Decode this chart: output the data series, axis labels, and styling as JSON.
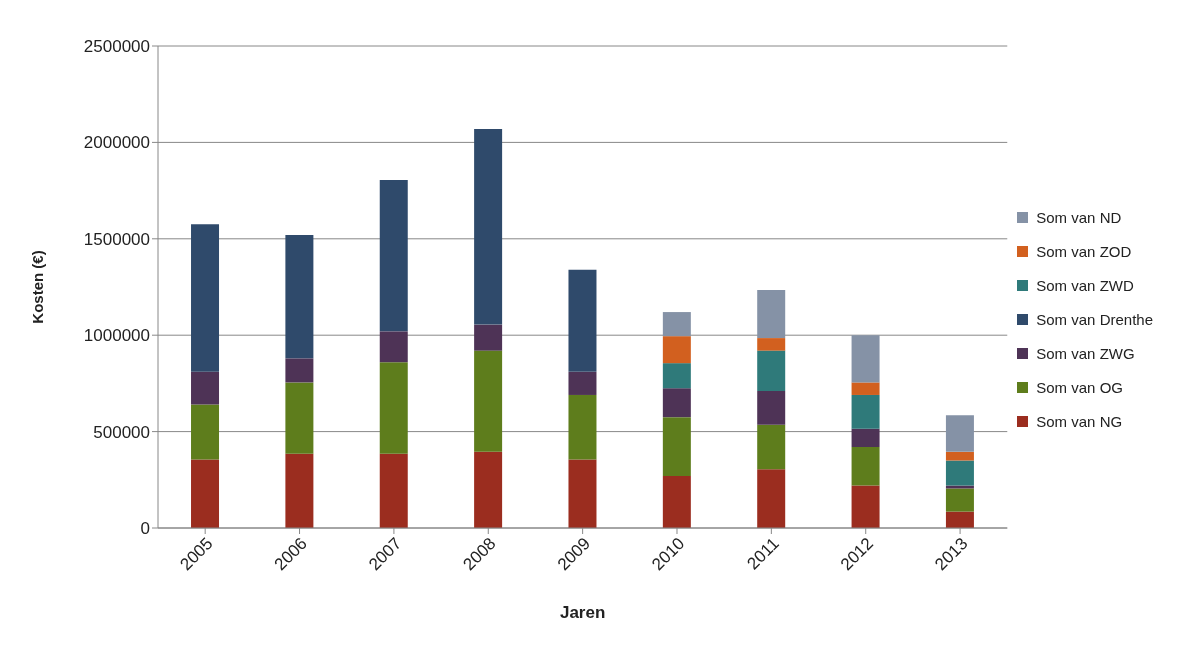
{
  "chart_data": {
    "type": "bar",
    "stacked": true,
    "xlabel": "Jaren",
    "ylabel": "Kosten (€)",
    "categories": [
      "2005",
      "2006",
      "2007",
      "2008",
      "2009",
      "2010",
      "2011",
      "2012",
      "2013"
    ],
    "series": [
      {
        "name": "Som van NG",
        "color": "#9b2d1f",
        "values": [
          355000,
          385000,
          385000,
          395000,
          355000,
          270000,
          305000,
          220000,
          85000
        ]
      },
      {
        "name": "Som van OG",
        "color": "#5e7d1c",
        "values": [
          285000,
          370000,
          475000,
          525000,
          335000,
          305000,
          230000,
          200000,
          120000
        ]
      },
      {
        "name": "Som van ZWG",
        "color": "#4e3356",
        "values": [
          170000,
          125000,
          160000,
          135000,
          120000,
          150000,
          175000,
          95000,
          15000
        ]
      },
      {
        "name": "Som van Drenthe",
        "color": "#2f4a6b",
        "values": [
          765000,
          640000,
          785000,
          1015000,
          530000,
          0,
          0,
          0,
          0
        ]
      },
      {
        "name": "Som van ZWD",
        "color": "#2f7a7a",
        "values": [
          0,
          0,
          0,
          0,
          0,
          130000,
          210000,
          175000,
          130000
        ]
      },
      {
        "name": "Som van ZOD",
        "color": "#d2601f",
        "values": [
          0,
          0,
          0,
          0,
          0,
          140000,
          65000,
          65000,
          45000
        ]
      },
      {
        "name": "Som van ND",
        "color": "#8592a6",
        "values": [
          0,
          0,
          0,
          0,
          0,
          125000,
          250000,
          245000,
          190000
        ]
      }
    ],
    "ylim": [
      0,
      2500000
    ],
    "yticks": [
      0,
      500000,
      1000000,
      1500000,
      2000000,
      2500000
    ],
    "grid": "y",
    "legend": "right"
  }
}
